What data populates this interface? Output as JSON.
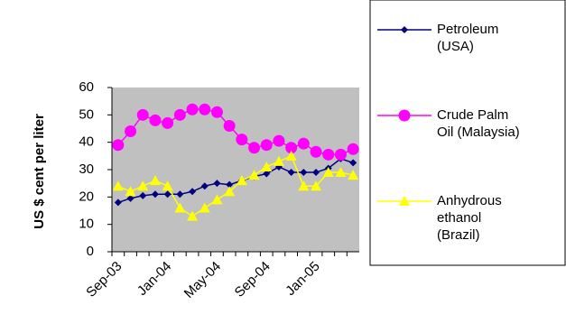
{
  "chart_data": {
    "type": "line",
    "y_label": "US $ cent per liter",
    "categories": [
      "Sep-03",
      null,
      null,
      null,
      "Jan-04",
      null,
      null,
      null,
      "May-04",
      null,
      null,
      null,
      "Sep-04",
      null,
      null,
      null,
      "Jan-05",
      null,
      null,
      null
    ],
    "series": [
      {
        "name": "Petroleum (USA)",
        "color": "#000080",
        "marker": "diamond",
        "values": [
          18,
          19.5,
          20.5,
          21,
          21,
          21,
          22,
          24,
          25,
          24.5,
          26,
          27.5,
          28.5,
          31,
          29,
          29,
          29,
          30.5,
          34,
          32.5
        ]
      },
      {
        "name": "Crude Palm Oil (Malaysia)",
        "color": "#ff00ff",
        "marker": "circle",
        "values": [
          39,
          44,
          50,
          48,
          47,
          50,
          52,
          52,
          51,
          46,
          41,
          38,
          39,
          40.5,
          38,
          39.5,
          36.5,
          35.5,
          35.5,
          37.5
        ]
      },
      {
        "name": "Anhydrous ethanol (Brazil)",
        "color": "#ffff00",
        "marker": "triangle",
        "values": [
          24,
          22,
          24,
          26,
          24,
          16,
          13,
          16,
          19,
          22,
          26,
          28,
          31,
          33,
          35,
          24,
          24,
          29,
          29,
          28
        ]
      }
    ],
    "ylim": [
      0,
      60
    ],
    "yticks": [
      0,
      10,
      20,
      30,
      40,
      50,
      60
    ],
    "plot_background": "#c0c0c0",
    "legend": "right"
  }
}
